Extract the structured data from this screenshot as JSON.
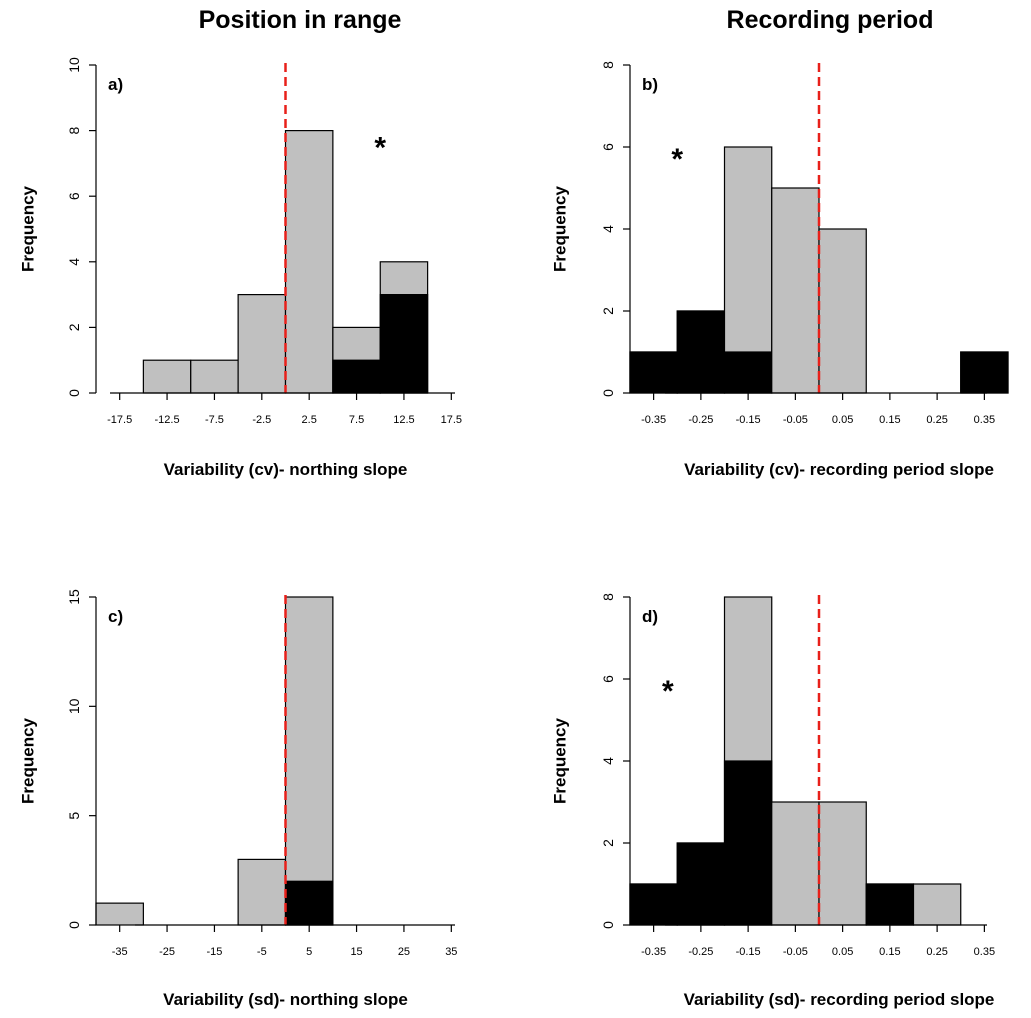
{
  "column_titles": {
    "left": "Position in range",
    "right": "Recording period"
  },
  "colors": {
    "all_species": "#c0c0c0",
    "significant": "#000000",
    "reference_line": "#e8201a"
  },
  "chart_data": [
    {
      "type": "bar",
      "panel_label": "a)",
      "xlabel": "Variability (cv)- northing slope",
      "ylabel": "Frequency",
      "tick_labels": [
        "-17.5",
        "-12.5",
        "-7.5",
        "-2.5",
        "2.5",
        "7.5",
        "12.5",
        "17.5"
      ],
      "tick_values": [
        -17.5,
        -12.5,
        -7.5,
        -2.5,
        2.5,
        7.5,
        12.5,
        17.5
      ],
      "bin_edges": [
        -15,
        -10,
        -5,
        0,
        5,
        10,
        15
      ],
      "total_counts": [
        1,
        1,
        3,
        8,
        2,
        4
      ],
      "black_counts": [
        0,
        0,
        0,
        0,
        1,
        3
      ],
      "xlim": [
        -20,
        20
      ],
      "yticks": [
        0,
        2,
        4,
        6,
        8,
        10
      ],
      "ylim": [
        0,
        10
      ],
      "reference_x": 0,
      "annotation": "*",
      "annotation_position": [
        10,
        7.6
      ]
    },
    {
      "type": "bar",
      "panel_label": "b)",
      "xlabel": "Variability (cv)- recording period slope",
      "ylabel": "Frequency",
      "tick_labels": [
        "-0.35",
        "-0.25",
        "-0.15",
        "-0.05",
        "0.05",
        "0.15",
        "0.25",
        "0.35"
      ],
      "tick_values": [
        -0.35,
        -0.25,
        -0.15,
        -0.05,
        0.05,
        0.15,
        0.25,
        0.35
      ],
      "bin_edges": [
        -0.4,
        -0.3,
        -0.2,
        -0.1,
        0,
        0.1,
        0.2,
        0.3,
        0.4
      ],
      "total_counts": [
        1,
        2,
        6,
        5,
        4,
        0,
        0,
        1
      ],
      "black_counts": [
        1,
        2,
        1,
        0,
        0,
        0,
        0,
        1
      ],
      "xlim": [
        -0.4,
        0.4
      ],
      "yticks": [
        0,
        2,
        4,
        6,
        8
      ],
      "ylim": [
        0,
        8
      ],
      "reference_x": 0,
      "annotation": "*",
      "annotation_position": [
        -0.3,
        5.8
      ]
    },
    {
      "type": "bar",
      "panel_label": "c)",
      "xlabel": "Variability (sd)- northing slope",
      "ylabel": "Frequency",
      "tick_labels": [
        "-35",
        "-25",
        "-15",
        "-5",
        "5",
        "15",
        "25",
        "35"
      ],
      "tick_values": [
        -35,
        -25,
        -15,
        -5,
        5,
        15,
        25,
        35
      ],
      "bin_edges": [
        -40,
        -30,
        -20,
        -10,
        0,
        10,
        20,
        30,
        40
      ],
      "total_counts": [
        1,
        0,
        0,
        3,
        15,
        0,
        0,
        0
      ],
      "black_counts": [
        0,
        0,
        0,
        0,
        2,
        0,
        0,
        0
      ],
      "xlim": [
        -40,
        40
      ],
      "yticks": [
        0,
        5,
        10,
        15
      ],
      "ylim": [
        0,
        15
      ],
      "reference_x": 0,
      "annotation": "",
      "annotation_position": null
    },
    {
      "type": "bar",
      "panel_label": "d)",
      "xlabel": "Variability (sd)- recording period slope",
      "ylabel": "Frequency",
      "tick_labels": [
        "-0.35",
        "-0.25",
        "-0.15",
        "-0.05",
        "0.05",
        "0.15",
        "0.25",
        "0.35"
      ],
      "tick_values": [
        -0.35,
        -0.25,
        -0.15,
        -0.05,
        0.05,
        0.15,
        0.25,
        0.35
      ],
      "bin_edges": [
        -0.4,
        -0.3,
        -0.2,
        -0.1,
        0,
        0.1,
        0.2,
        0.3,
        0.4
      ],
      "total_counts": [
        1,
        2,
        8,
        3,
        3,
        1,
        1,
        0
      ],
      "black_counts": [
        1,
        2,
        4,
        0,
        0,
        1,
        0,
        0
      ],
      "xlim": [
        -0.4,
        0.4
      ],
      "yticks": [
        0,
        2,
        4,
        6,
        8
      ],
      "ylim": [
        0,
        8
      ],
      "reference_x": 0,
      "annotation": "*",
      "annotation_position": [
        -0.32,
        5.8
      ]
    }
  ]
}
